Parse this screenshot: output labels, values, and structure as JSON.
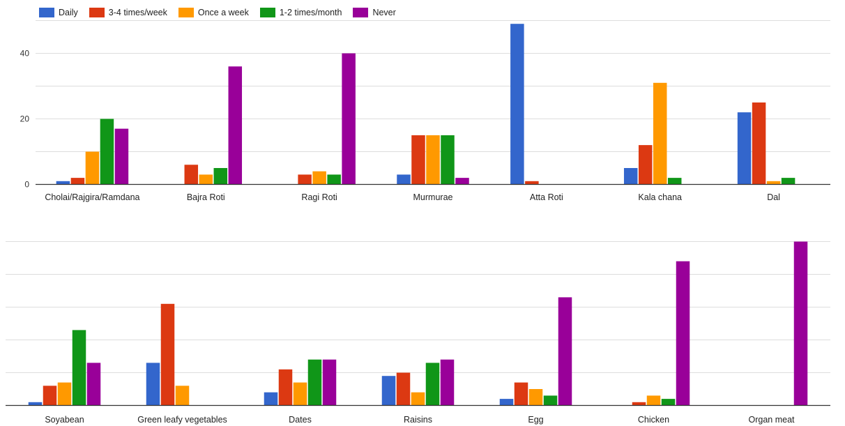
{
  "legend": [
    {
      "name": "Daily",
      "color": "#3366cc"
    },
    {
      "name": "3-4 times/week",
      "color": "#dc3912"
    },
    {
      "name": "Once a week",
      "color": "#ff9900"
    },
    {
      "name": "1-2 times/month",
      "color": "#109618"
    },
    {
      "name": "Never",
      "color": "#990099"
    }
  ],
  "chart_data": [
    {
      "type": "bar",
      "title": "",
      "categories": [
        "Cholai/Rajgira/Ramdana",
        "Bajra Roti",
        "Ragi Roti",
        "Murmurae",
        "Atta Roti",
        "Kala chana",
        "Dal"
      ],
      "ylim": [
        0,
        50
      ],
      "yticks": [
        0,
        20,
        40
      ],
      "series": [
        {
          "name": "Daily",
          "values": [
            1,
            0,
            0,
            3,
            49,
            5,
            22
          ]
        },
        {
          "name": "3-4 times/week",
          "values": [
            2,
            6,
            3,
            15,
            1,
            12,
            25
          ]
        },
        {
          "name": "Once a week",
          "values": [
            10,
            3,
            4,
            15,
            0,
            31,
            1
          ]
        },
        {
          "name": "1-2 times/month",
          "values": [
            20,
            5,
            3,
            15,
            0,
            2,
            2
          ]
        },
        {
          "name": "Never",
          "values": [
            17,
            36,
            40,
            2,
            0,
            0,
            0
          ]
        }
      ],
      "grid": true,
      "legend_position": "top-left"
    },
    {
      "type": "bar",
      "title": "",
      "categories": [
        "Soyabean",
        "Green leafy vegetables",
        "Dates",
        "Raisins",
        "Egg",
        "Chicken",
        "Organ meat"
      ],
      "ylim": [
        0,
        50
      ],
      "yticks": [],
      "series": [
        {
          "name": "Daily",
          "values": [
            1,
            13,
            4,
            9,
            2,
            0,
            0
          ]
        },
        {
          "name": "3-4 times/week",
          "values": [
            6,
            31,
            11,
            10,
            7,
            1,
            0
          ]
        },
        {
          "name": "Once a week",
          "values": [
            7,
            6,
            7,
            4,
            5,
            3,
            0
          ]
        },
        {
          "name": "1-2 times/month",
          "values": [
            23,
            0,
            14,
            13,
            3,
            2,
            0
          ]
        },
        {
          "name": "Never",
          "values": [
            13,
            0,
            14,
            14,
            33,
            44,
            50
          ]
        }
      ],
      "grid": true
    }
  ]
}
